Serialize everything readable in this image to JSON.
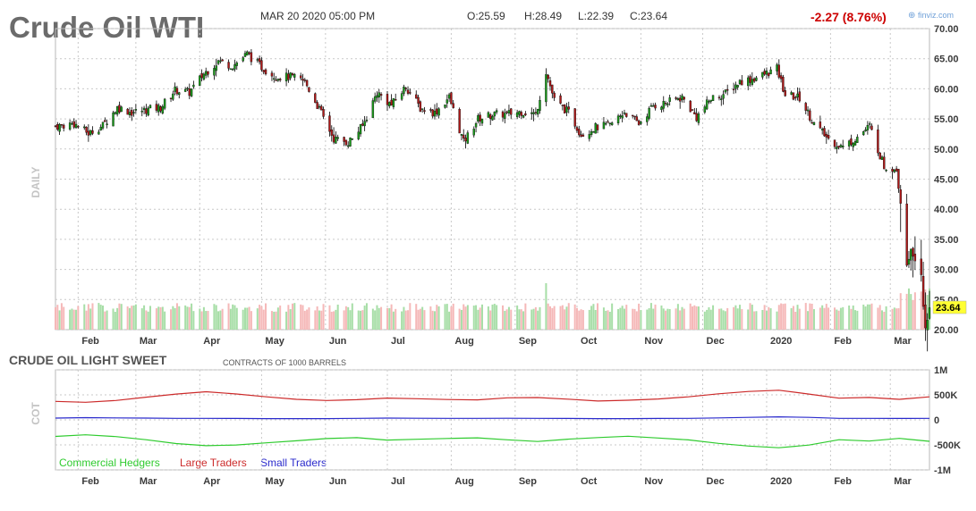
{
  "header": {
    "title": "Crude Oil WTI",
    "timestamp": "MAR 20 2020 05:00 PM",
    "open": "O:25.59",
    "high": "H:28.49",
    "low": "L:22.39",
    "close": "C:23.64",
    "change": "-2.27 (8.76%)",
    "brand": "finviz.com"
  },
  "price_panel": {
    "side_label": "DAILY",
    "last_price_label": "23.64"
  },
  "cot_panel": {
    "title": "CRUDE OIL LIGHT SWEET",
    "subtitle": "CONTRACTS OF 1000 BARRELS",
    "side_label": "COT"
  },
  "colors": {
    "up": "#1a9c1a",
    "down": "#b01818",
    "volume_up": "#a7dea7",
    "volume_down": "#f5b8b8",
    "commercial": "#2ecb2e",
    "large": "#cc2a2a",
    "small": "#2a2acc",
    "price_tag": "#ffff33",
    "change_red": "#cc0000",
    "title_gray": "#6b6b6b"
  },
  "chart_data": [
    {
      "type": "candlestick",
      "title": "Crude Oil WTI",
      "interval": "daily",
      "x_tick_labels": [
        "Feb",
        "Mar",
        "Apr",
        "May",
        "Jun",
        "Jul",
        "Aug",
        "Sep",
        "Oct",
        "Nov",
        "Dec",
        "2020",
        "Feb",
        "Mar"
      ],
      "y_tick_labels": [
        "70.00",
        "65.00",
        "60.00",
        "55.00",
        "50.00",
        "45.00",
        "40.00",
        "35.00",
        "30.00",
        "25.00",
        "20.00"
      ],
      "ylim": [
        20,
        70
      ],
      "grid": true,
      "last_close": 23.64,
      "close_path": [
        [
          "2019-01-21",
          53.8
        ],
        [
          "2019-01-30",
          54.2
        ],
        [
          "2019-02-06",
          52.6
        ],
        [
          "2019-02-13",
          53.9
        ],
        [
          "2019-02-20",
          56.9
        ],
        [
          "2019-02-27",
          56.1
        ],
        [
          "2019-03-06",
          56.5
        ],
        [
          "2019-03-13",
          56.9
        ],
        [
          "2019-03-20",
          59.8
        ],
        [
          "2019-03-27",
          59.4
        ],
        [
          "2019-04-03",
          62.5
        ],
        [
          "2019-04-10",
          64.6
        ],
        [
          "2019-04-17",
          63.8
        ],
        [
          "2019-04-24",
          65.8
        ],
        [
          "2019-05-01",
          63.6
        ],
        [
          "2019-05-08",
          62.0
        ],
        [
          "2019-05-15",
          62.0
        ],
        [
          "2019-05-22",
          61.2
        ],
        [
          "2019-05-29",
          56.6
        ],
        [
          "2019-06-05",
          51.7
        ],
        [
          "2019-06-12",
          51.1
        ],
        [
          "2019-06-19",
          53.8
        ],
        [
          "2019-06-26",
          59.4
        ],
        [
          "2019-07-03",
          57.3
        ],
        [
          "2019-07-10",
          60.4
        ],
        [
          "2019-07-17",
          56.8
        ],
        [
          "2019-07-24",
          56.0
        ],
        [
          "2019-07-31",
          58.6
        ],
        [
          "2019-08-07",
          51.1
        ],
        [
          "2019-08-14",
          55.0
        ],
        [
          "2019-08-21",
          55.7
        ],
        [
          "2019-08-28",
          55.8
        ],
        [
          "2019-09-04",
          56.2
        ],
        [
          "2019-09-11",
          55.8
        ],
        [
          "2019-09-16",
          62.9
        ],
        [
          "2019-09-20",
          58.1
        ],
        [
          "2019-09-27",
          56.0
        ],
        [
          "2019-10-03",
          52.4
        ],
        [
          "2019-10-10",
          53.6
        ],
        [
          "2019-10-17",
          53.9
        ],
        [
          "2019-10-24",
          56.2
        ],
        [
          "2019-10-31",
          54.2
        ],
        [
          "2019-11-07",
          57.2
        ],
        [
          "2019-11-14",
          57.7
        ],
        [
          "2019-11-21",
          58.6
        ],
        [
          "2019-11-28",
          55.2
        ],
        [
          "2019-12-05",
          58.4
        ],
        [
          "2019-12-12",
          59.2
        ],
        [
          "2019-12-19",
          61.2
        ],
        [
          "2019-12-26",
          61.7
        ],
        [
          "2020-01-06",
          63.3
        ],
        [
          "2020-01-10",
          59.0
        ],
        [
          "2020-01-17",
          58.5
        ],
        [
          "2020-01-24",
          54.2
        ],
        [
          "2020-01-31",
          51.6
        ],
        [
          "2020-02-07",
          50.3
        ],
        [
          "2020-02-14",
          52.0
        ],
        [
          "2020-02-20",
          53.8
        ],
        [
          "2020-02-27",
          47.1
        ],
        [
          "2020-03-04",
          46.8
        ],
        [
          "2020-03-06",
          41.3
        ],
        [
          "2020-03-09",
          31.1
        ],
        [
          "2020-03-11",
          32.98
        ],
        [
          "2020-03-13",
          31.7
        ],
        [
          "2020-03-16",
          28.7
        ],
        [
          "2020-03-18",
          20.4
        ],
        [
          "2020-03-20",
          23.64
        ]
      ]
    },
    {
      "type": "line",
      "title": "CRUDE OIL LIGHT SWEET",
      "subtitle": "CONTRACTS OF 1000 BARRELS",
      "x_tick_labels": [
        "Feb",
        "Mar",
        "Apr",
        "May",
        "Jun",
        "Jul",
        "Aug",
        "Sep",
        "Oct",
        "Nov",
        "Dec",
        "2020",
        "Feb",
        "Mar"
      ],
      "y_tick_labels": [
        "1M",
        "500K",
        "0",
        "-500K",
        "-1M"
      ],
      "ylim": [
        -1000000,
        1000000
      ],
      "grid": true,
      "legend": "bottom-left",
      "series": [
        {
          "name": "Commercial Hedgers",
          "color": "#2ecb2e",
          "values": [
            -330000,
            -300000,
            -330000,
            -400000,
            -470000,
            -520000,
            -500000,
            -460000,
            -420000,
            -370000,
            -360000,
            -400000,
            -390000,
            -370000,
            -360000,
            -400000,
            -430000,
            -390000,
            -350000,
            -330000,
            -360000,
            -400000,
            -470000,
            -520000,
            -560000,
            -500000,
            -400000,
            -420000,
            -370000,
            -430000
          ]
        },
        {
          "name": "Large Traders",
          "color": "#cc2a2a",
          "values": [
            370000,
            350000,
            390000,
            450000,
            520000,
            560000,
            520000,
            460000,
            410000,
            390000,
            400000,
            440000,
            420000,
            410000,
            400000,
            440000,
            450000,
            410000,
            380000,
            390000,
            420000,
            460000,
            520000,
            570000,
            590000,
            520000,
            430000,
            450000,
            410000,
            460000
          ]
        },
        {
          "name": "Small Traders",
          "color": "#2a2acc",
          "values": [
            35000,
            45000,
            40000,
            35000,
            30000,
            30000,
            28000,
            25000,
            25000,
            25000,
            30000,
            35000,
            32000,
            30000,
            30000,
            32000,
            30000,
            28000,
            25000,
            25000,
            28000,
            30000,
            40000,
            50000,
            60000,
            50000,
            30000,
            30000,
            28000,
            30000
          ]
        }
      ]
    }
  ]
}
